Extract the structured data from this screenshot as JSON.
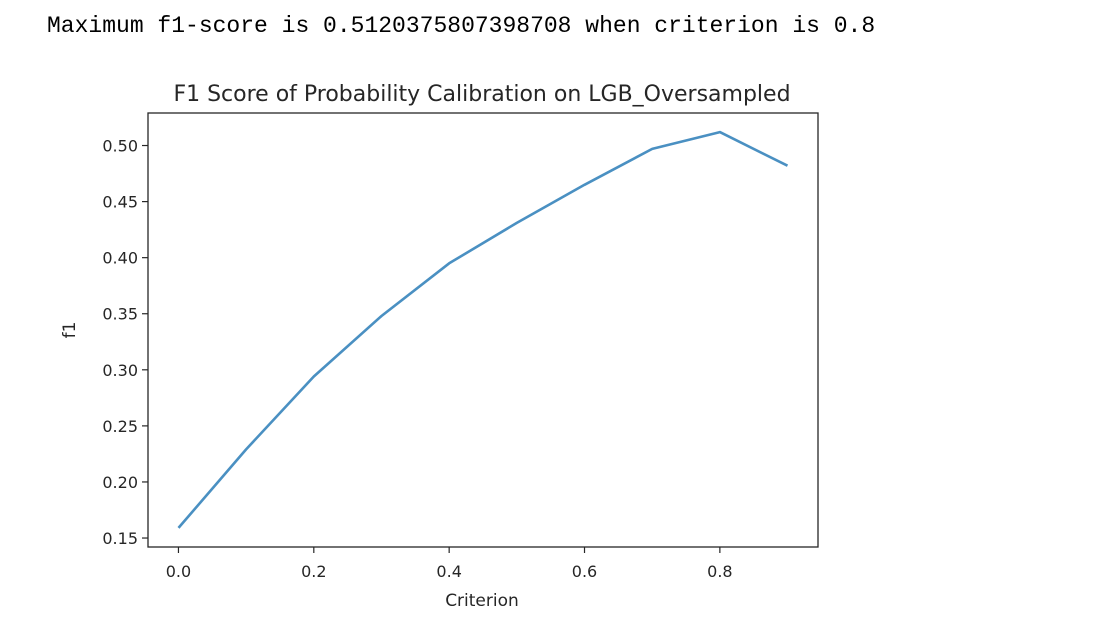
{
  "output": {
    "text": "Maximum f1-score is 0.5120375807398708 when criterion is 0.8"
  },
  "chart_data": {
    "type": "line",
    "title": "F1 Score of Probability Calibration on LGB_Oversampled",
    "xlabel": "Criterion",
    "ylabel": "f1",
    "xlim": [
      -0.045,
      0.945
    ],
    "ylim": [
      0.142,
      0.529
    ],
    "xticks": [
      0.0,
      0.2,
      0.4,
      0.6,
      0.8
    ],
    "xtick_labels": [
      "0.0",
      "0.2",
      "0.4",
      "0.6",
      "0.8"
    ],
    "yticks": [
      0.15,
      0.2,
      0.25,
      0.3,
      0.35,
      0.4,
      0.45,
      0.5
    ],
    "ytick_labels": [
      "0.15",
      "0.20",
      "0.25",
      "0.30",
      "0.35",
      "0.40",
      "0.45",
      "0.50"
    ],
    "grid": false,
    "series": [
      {
        "color": "#4a90c2",
        "x": [
          0.0,
          0.1,
          0.2,
          0.3,
          0.4,
          0.5,
          0.6,
          0.7,
          0.8,
          0.9
        ],
        "y": [
          0.159,
          0.229,
          0.294,
          0.348,
          0.395,
          0.431,
          0.465,
          0.497,
          0.512,
          0.482
        ]
      }
    ]
  }
}
